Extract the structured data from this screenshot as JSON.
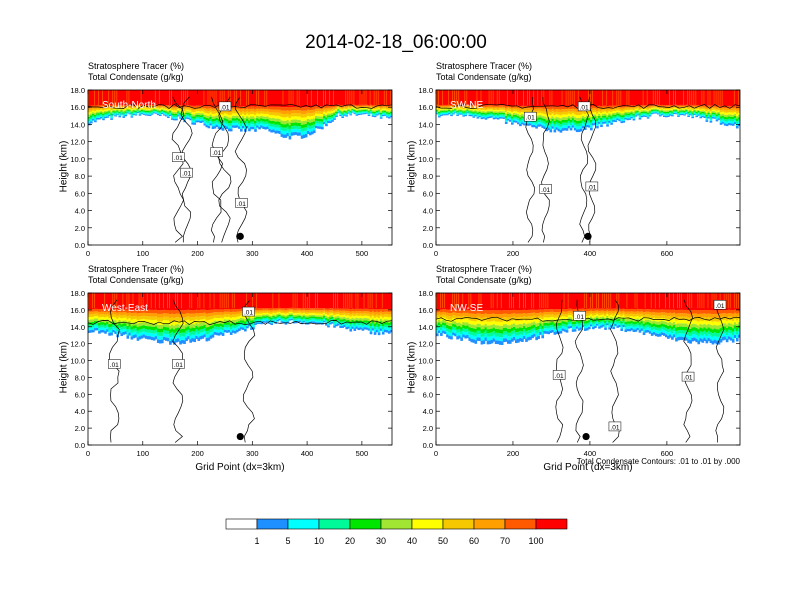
{
  "page": {
    "title": "2014-02-18_06:00:00"
  },
  "chart_data": [
    {
      "type": "heatmap",
      "panel_label": "South-North",
      "title_lines": [
        "Stratosphere Tracer   (%)",
        "Total Condensate   (g/kg)"
      ],
      "ylabel": "Height (km)",
      "xlabel": "",
      "xlim": [
        0,
        555
      ],
      "ylim": [
        0,
        18
      ],
      "xticks": [
        "0",
        "100",
        "200",
        "300",
        "400",
        "500"
      ],
      "yticks": [
        "0.0",
        "2.0",
        "4.0",
        "6.0",
        "8.0",
        "10.0",
        "12.0",
        "14.0",
        "16.0",
        "18.0"
      ],
      "contour_labels": [
        {
          "text": ".01",
          "x": 165,
          "y": 10.2
        },
        {
          "text": ".01",
          "x": 180,
          "y": 8.4
        },
        {
          "text": ".01",
          "x": 235,
          "y": 10.8
        },
        {
          "text": ".01",
          "x": 250,
          "y": 16.1
        },
        {
          "text": ".01",
          "x": 280,
          "y": 4.9
        }
      ],
      "marker": {
        "x": 278,
        "y": 1.0
      }
    },
    {
      "type": "heatmap",
      "panel_label": "SW-NE",
      "title_lines": [
        "Stratosphere Tracer   (%)",
        "Total Condensate   (g/kg)"
      ],
      "ylabel": "Height (km)",
      "xlabel": "",
      "xlim": [
        0,
        790
      ],
      "ylim": [
        0,
        18
      ],
      "xticks": [
        "0",
        "200",
        "400",
        "600"
      ],
      "yticks": [
        "0.0",
        "2.0",
        "4.0",
        "6.0",
        "8.0",
        "10.0",
        "12.0",
        "14.0",
        "16.0",
        "18.0"
      ],
      "contour_labels": [
        {
          "text": ".01",
          "x": 245,
          "y": 14.9
        },
        {
          "text": ".01",
          "x": 285,
          "y": 6.5
        },
        {
          "text": ".01",
          "x": 405,
          "y": 6.8
        },
        {
          "text": ".01",
          "x": 385,
          "y": 16.1
        }
      ],
      "marker": {
        "x": 395,
        "y": 1.0
      }
    },
    {
      "type": "heatmap",
      "panel_label": "West-East",
      "title_lines": [
        "Stratosphere Tracer   (%)",
        "Total Condensate   (g/kg)"
      ],
      "ylabel": "Height (km)",
      "xlabel": "Grid Point (dx=3km)",
      "xlim": [
        0,
        555
      ],
      "ylim": [
        0,
        18
      ],
      "xticks": [
        "0",
        "100",
        "200",
        "300",
        "400",
        "500"
      ],
      "yticks": [
        "0.0",
        "2.0",
        "4.0",
        "6.0",
        "8.0",
        "10.0",
        "12.0",
        "14.0",
        "16.0",
        "18.0"
      ],
      "contour_labels": [
        {
          "text": ".01",
          "x": 48,
          "y": 9.6
        },
        {
          "text": ".01",
          "x": 165,
          "y": 9.6
        },
        {
          "text": ".01",
          "x": 293,
          "y": 15.8
        }
      ],
      "marker": {
        "x": 278,
        "y": 1.0
      }
    },
    {
      "type": "heatmap",
      "panel_label": "NW-SE",
      "title_lines": [
        "Stratosphere Tracer   (%)",
        "Total Condensate   (g/kg)"
      ],
      "ylabel": "Height (km)",
      "xlabel": "Grid Point (dx=3km)",
      "xlim": [
        0,
        790
      ],
      "ylim": [
        0,
        18
      ],
      "xticks": [
        "0",
        "200",
        "400",
        "600"
      ],
      "yticks": [
        "0.0",
        "2.0",
        "4.0",
        "6.0",
        "8.0",
        "10.0",
        "12.0",
        "14.0",
        "16.0",
        "18.0"
      ],
      "contour_labels": [
        {
          "text": ".01",
          "x": 373,
          "y": 15.3
        },
        {
          "text": ".01",
          "x": 320,
          "y": 8.3
        },
        {
          "text": ".01",
          "x": 655,
          "y": 8.1
        },
        {
          "text": ".01",
          "x": 465,
          "y": 2.2
        },
        {
          "text": ".01",
          "x": 738,
          "y": 16.6
        }
      ],
      "marker": {
        "x": 390,
        "y": 1.0
      },
      "note": "Total Condensate Contours: .01 to .01 by .000"
    }
  ],
  "colorbar": {
    "levels": [
      "1",
      "5",
      "10",
      "20",
      "30",
      "40",
      "50",
      "60",
      "70",
      "100"
    ],
    "colors": [
      "#ffffff",
      "#1e90ff",
      "#00ffff",
      "#00fa9a",
      "#00e600",
      "#a0e632",
      "#ffff00",
      "#f5c800",
      "#ffa000",
      "#ff5a00",
      "#ff0000"
    ]
  }
}
